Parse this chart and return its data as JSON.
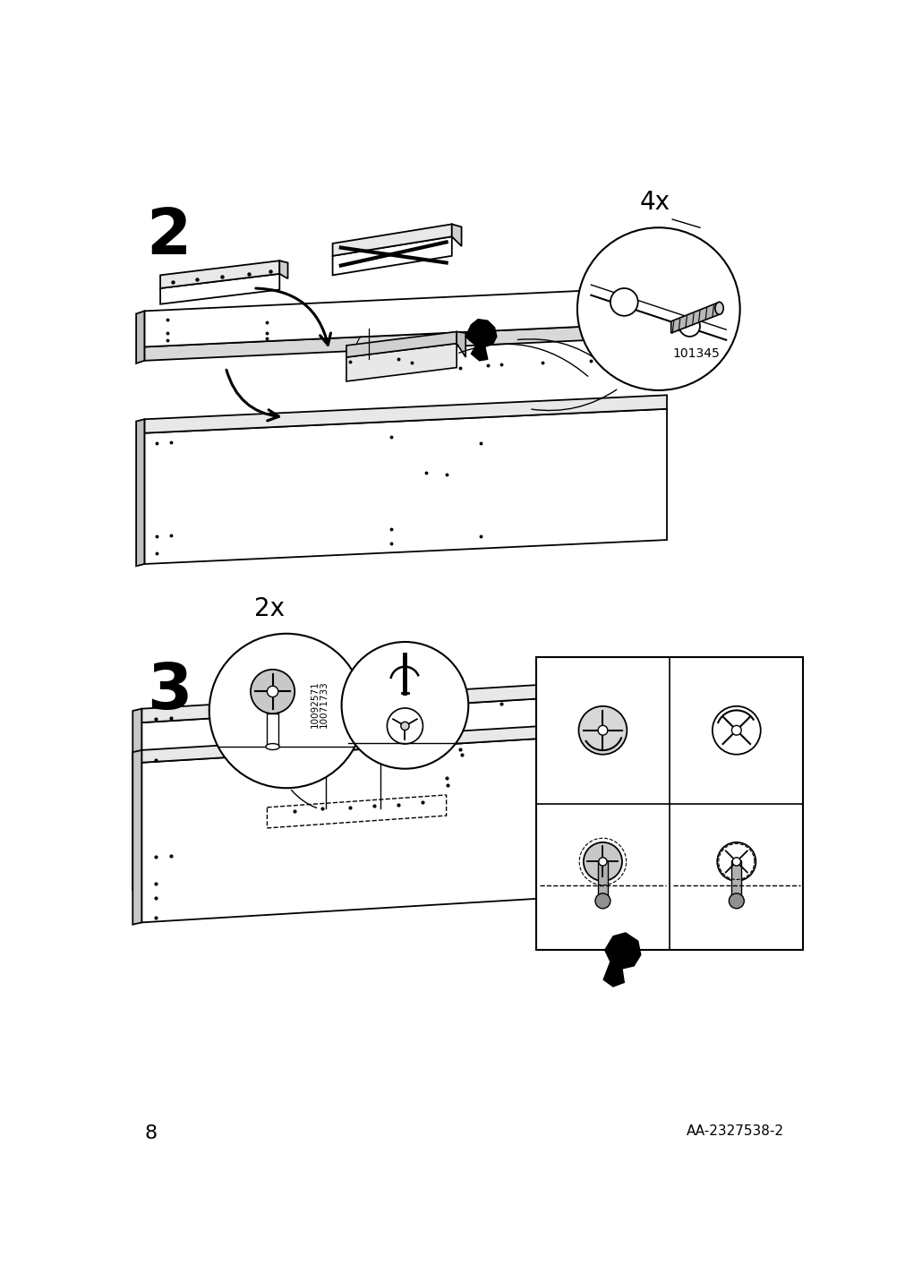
{
  "page_num": "8",
  "footer_text": "AA-2327538-2",
  "bg_color": "#ffffff",
  "lc": "#000000",
  "step2_label": "2",
  "step3_label": "3",
  "step2_4x": "4x",
  "step2_partnum": "101345",
  "step3_2x": "2x",
  "step3_partnum1": "10092571",
  "step3_partnum2": "10071733",
  "figsize": [
    10.12,
    14.32
  ],
  "dpi": 100
}
